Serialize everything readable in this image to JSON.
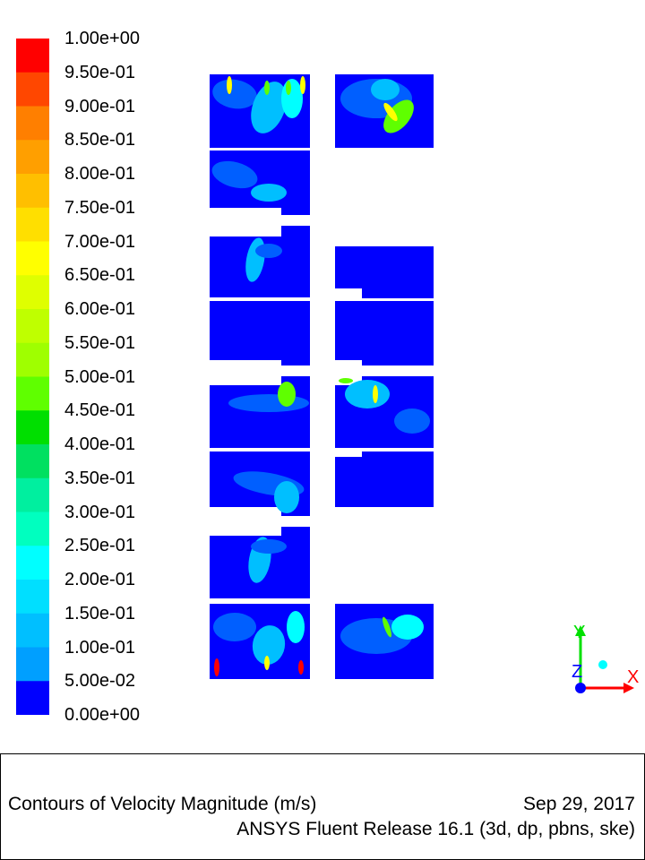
{
  "colormap": {
    "tick_labels": [
      "1.00e+00",
      "9.50e-01",
      "9.00e-01",
      "8.50e-01",
      "8.00e-01",
      "7.50e-01",
      "7.00e-01",
      "6.50e-01",
      "6.00e-01",
      "5.50e-01",
      "5.00e-01",
      "4.50e-01",
      "4.00e-01",
      "3.50e-01",
      "3.00e-01",
      "2.50e-01",
      "2.00e-01",
      "1.50e-01",
      "1.00e-01",
      "5.00e-02",
      "0.00e+00"
    ],
    "band_colors_top_to_bottom": [
      "#ff0000",
      "#ff4700",
      "#ff7f00",
      "#ff9f00",
      "#ffbf00",
      "#ffdf00",
      "#ffff00",
      "#dfff00",
      "#bfff00",
      "#9fff00",
      "#5fff00",
      "#00df00",
      "#00e060",
      "#00ef9f",
      "#00ffbf",
      "#00ffff",
      "#00dfff",
      "#00bfff",
      "#009fff",
      "#005fff",
      "#0000ff"
    ]
  },
  "axes": {
    "x_label": "X",
    "y_label": "Y",
    "z_label": "Z"
  },
  "info": {
    "title": "Contours of Velocity Magnitude (m/s)",
    "date": "Sep 29, 2017",
    "software": "ANSYS Fluent Release 16.1 (3d, dp, pbns, ske)"
  },
  "plot": {
    "background_color": "#0000ff",
    "highlight_colors": [
      "#005fff",
      "#00bfff",
      "#00ffff",
      "#5fff00",
      "#ffff00",
      "#ff0000"
    ]
  }
}
